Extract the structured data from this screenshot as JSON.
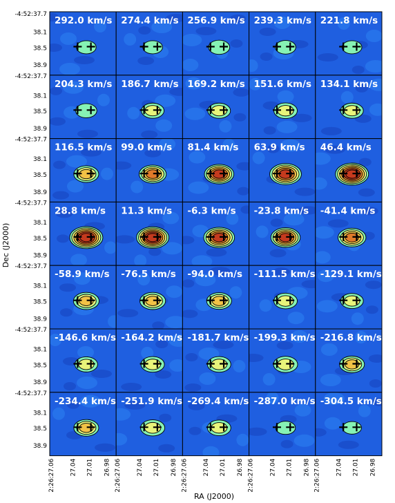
{
  "figure": {
    "ylabel": "Dec (J2000)",
    "xlabel": "RA (J2000)",
    "y_ticks": [
      "-4:52:37.7",
      "38.1",
      "38.5",
      "38.9"
    ],
    "x_ticks": [
      "2:26:27.06",
      "27.04",
      "27.01",
      "26.98"
    ],
    "panel_fill": "#1f5fe0",
    "contour_levels_colors": [
      "#86f2b4",
      "#e8f47a",
      "#f2c246",
      "#e07a2a",
      "#c53a1e"
    ]
  },
  "chart_data": {
    "type": "heatmap",
    "title": "",
    "grid": {
      "rows": 7,
      "cols": 5
    },
    "marker_positions_note": "",
    "panels": [
      {
        "label": "292.0 km/s",
        "peak": 0.1
      },
      {
        "label": "274.4 km/s",
        "peak": 0.1
      },
      {
        "label": "256.9 km/s",
        "peak": 0.2
      },
      {
        "label": "239.3 km/s",
        "peak": 0.15
      },
      {
        "label": "221.8 km/s",
        "peak": 0.1
      },
      {
        "label": "204.3 km/s",
        "peak": 0.2
      },
      {
        "label": "186.7 km/s",
        "peak": 0.3
      },
      {
        "label": "169.2 km/s",
        "peak": 0.3
      },
      {
        "label": "151.6 km/s",
        "peak": 0.35
      },
      {
        "label": "134.1 km/s",
        "peak": 0.3
      },
      {
        "label": "116.5 km/s",
        "peak": 0.45
      },
      {
        "label": "99.0 km/s",
        "peak": 0.6
      },
      {
        "label": "81.4 km/s",
        "peak": 0.75
      },
      {
        "label": "63.9 km/s",
        "peak": 0.9
      },
      {
        "label": "46.4 km/s",
        "peak": 1.0
      },
      {
        "label": "28.8 km/s",
        "peak": 1.0
      },
      {
        "label": "11.3 km/s",
        "peak": 0.95
      },
      {
        "label": "-6.3 km/s",
        "peak": 0.85
      },
      {
        "label": "-23.8 km/s",
        "peak": 0.75
      },
      {
        "label": "-41.4 km/s",
        "peak": 0.65
      },
      {
        "label": "-58.9 km/s",
        "peak": 0.5
      },
      {
        "label": "-76.5 km/s",
        "peak": 0.5
      },
      {
        "label": "-94.0 km/s",
        "peak": 0.45
      },
      {
        "label": "-111.5 km/s",
        "peak": 0.35
      },
      {
        "label": "-129.1 km/s",
        "peak": 0.3
      },
      {
        "label": "-146.6 km/s",
        "peak": 0.3
      },
      {
        "label": "-164.2 km/s",
        "peak": 0.35
      },
      {
        "label": "-181.7 km/s",
        "peak": 0.35
      },
      {
        "label": "-199.3 km/s",
        "peak": 0.4
      },
      {
        "label": "-216.8 km/s",
        "peak": 0.45
      },
      {
        "label": "-234.4 km/s",
        "peak": 0.45
      },
      {
        "label": "-251.9 km/s",
        "peak": 0.4
      },
      {
        "label": "-269.4 km/s",
        "peak": 0.35
      },
      {
        "label": "-287.0 km/s",
        "peak": 0.1
      },
      {
        "label": "-304.5 km/s",
        "peak": 0.05
      }
    ]
  }
}
